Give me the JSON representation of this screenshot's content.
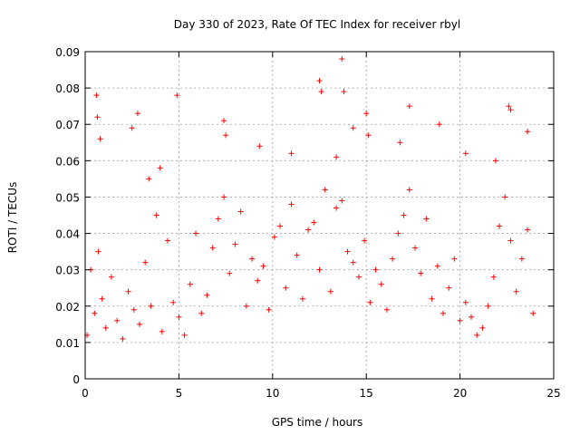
{
  "chart_data": {
    "type": "scatter",
    "title": "Day 330 of 2023, Rate Of TEC Index for receiver rbyl",
    "xlabel": "GPS time / hours",
    "ylabel": "ROTI / TECUs",
    "xlim": [
      0,
      25
    ],
    "ylim": [
      0,
      0.09
    ],
    "xticks": [
      "0",
      "5",
      "10",
      "15",
      "20",
      "25"
    ],
    "yticks": [
      "0",
      "0.01",
      "0.02",
      "0.03",
      "0.04",
      "0.05",
      "0.06",
      "0.07",
      "0.08",
      "0.09"
    ],
    "grid": true,
    "marker": "+",
    "color": "#ff0000",
    "series": [
      {
        "x": [
          0.1,
          0.3,
          0.5,
          0.7,
          0.9,
          1.1,
          1.4,
          1.7,
          2.0,
          2.3,
          2.6,
          2.9,
          3.2,
          3.5,
          3.8,
          4.1,
          4.4,
          4.7,
          5.0,
          5.3,
          5.6,
          5.9,
          6.2,
          6.5,
          6.8,
          7.1,
          7.4,
          7.7,
          8.0,
          8.3,
          8.6,
          8.9,
          9.2,
          9.5,
          9.8,
          10.1,
          10.4,
          10.7,
          11.0,
          11.3,
          11.6,
          11.9,
          12.2,
          12.5,
          12.8,
          13.1,
          13.4,
          13.7,
          14.0,
          14.3,
          14.6,
          14.9,
          15.2,
          15.5,
          15.8,
          16.1,
          16.4,
          16.7,
          17.0,
          17.3,
          17.6,
          17.9,
          18.2,
          18.5,
          18.8,
          19.1,
          19.4,
          19.7,
          20.0,
          20.3,
          20.6,
          20.9,
          21.2,
          21.5,
          21.8,
          22.1,
          22.4,
          22.7,
          23.0,
          23.3,
          23.6,
          23.9,
          0.6,
          0.65,
          0.8,
          2.5,
          2.8,
          4.9,
          7.4,
          7.5,
          12.5,
          12.6,
          13.4,
          13.7,
          13.8,
          14.3,
          15.0,
          15.1,
          17.3,
          18.9,
          22.6,
          22.7,
          23.6,
          20.3,
          9.3,
          11.0,
          16.8,
          4.0,
          3.4,
          21.9
        ],
        "y": [
          0.012,
          0.03,
          0.018,
          0.035,
          0.022,
          0.014,
          0.028,
          0.016,
          0.011,
          0.024,
          0.019,
          0.015,
          0.032,
          0.02,
          0.045,
          0.013,
          0.038,
          0.021,
          0.017,
          0.012,
          0.026,
          0.04,
          0.018,
          0.023,
          0.036,
          0.044,
          0.05,
          0.029,
          0.037,
          0.046,
          0.02,
          0.033,
          0.027,
          0.031,
          0.019,
          0.039,
          0.042,
          0.025,
          0.048,
          0.034,
          0.022,
          0.041,
          0.043,
          0.03,
          0.052,
          0.024,
          0.047,
          0.049,
          0.035,
          0.032,
          0.028,
          0.038,
          0.021,
          0.03,
          0.026,
          0.019,
          0.033,
          0.04,
          0.045,
          0.052,
          0.036,
          0.029,
          0.044,
          0.022,
          0.031,
          0.018,
          0.025,
          0.033,
          0.016,
          0.021,
          0.017,
          0.012,
          0.014,
          0.02,
          0.028,
          0.042,
          0.05,
          0.038,
          0.024,
          0.033,
          0.041,
          0.018,
          0.078,
          0.072,
          0.066,
          0.069,
          0.073,
          0.078,
          0.071,
          0.067,
          0.082,
          0.079,
          0.061,
          0.088,
          0.079,
          0.069,
          0.073,
          0.067,
          0.075,
          0.07,
          0.075,
          0.074,
          0.068,
          0.062,
          0.064,
          0.062,
          0.065,
          0.058,
          0.055,
          0.06
        ]
      }
    ]
  }
}
